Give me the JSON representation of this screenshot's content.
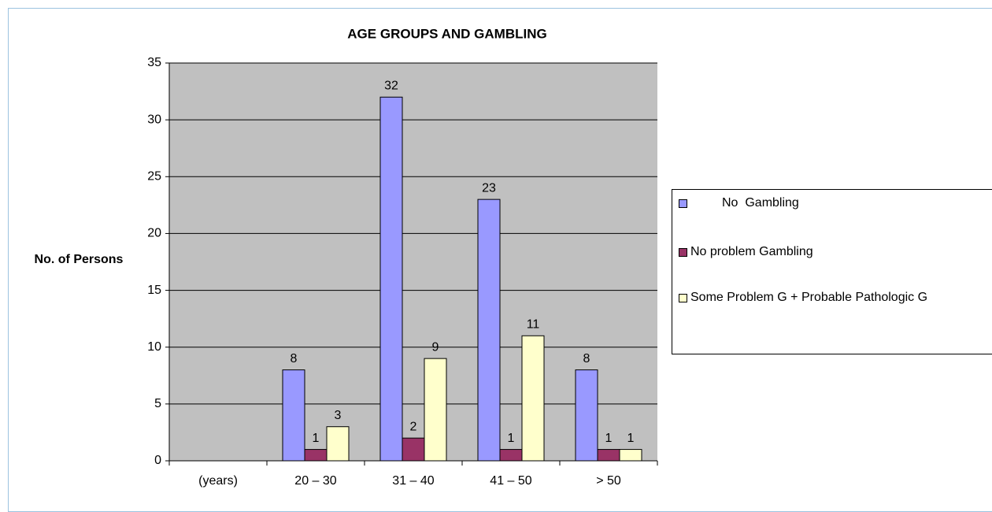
{
  "chart_data": {
    "type": "bar",
    "title": "AGE GROUPS AND GAMBLING",
    "y_label": "No. of Persons",
    "categories": [
      "(years)",
      "20 – 30",
      "31 – 40",
      "41 – 50",
      "> 50"
    ],
    "series": [
      {
        "name": "No  Gambling",
        "color": "#9999ff",
        "values": [
          null,
          8,
          32,
          23,
          8
        ]
      },
      {
        "name": "No problem Gambling",
        "color": "#993366",
        "values": [
          null,
          1,
          2,
          1,
          1
        ]
      },
      {
        "name": "Some Problem G + Probable Pathologic G",
        "color": "#ffffcc",
        "values": [
          null,
          3,
          9,
          11,
          1
        ]
      }
    ],
    "ylim": [
      0,
      35
    ],
    "yticks": [
      0,
      5,
      10,
      15,
      20,
      25,
      30,
      35
    ],
    "grid": true,
    "legend": "right",
    "plot_background": "#c0c0c0"
  }
}
